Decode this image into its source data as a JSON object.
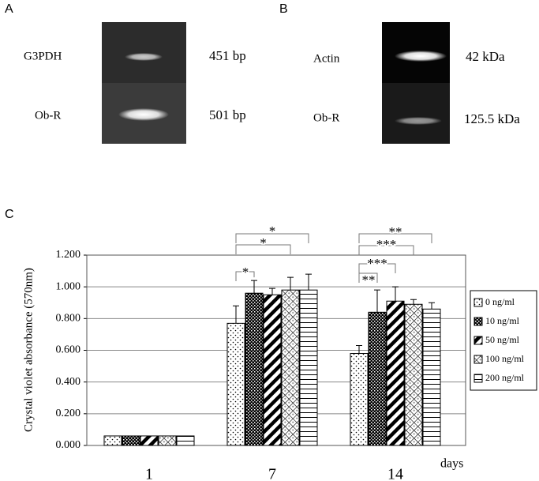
{
  "panel_a": {
    "label": "A",
    "rows": [
      {
        "name": "G3PDH",
        "size": "451 bp"
      },
      {
        "name": "Ob-R",
        "size": "501 bp"
      }
    ]
  },
  "panel_b": {
    "label": "B",
    "rows": [
      {
        "name": "Actin",
        "size": "42 kDa"
      },
      {
        "name": "Ob-R",
        "size": "125.5 kDa"
      }
    ]
  },
  "chart_data": {
    "type": "bar",
    "panel_label": "C",
    "ylabel": "Crystal violet absorbance (570nm)",
    "xlabel": "days",
    "categories": [
      "1",
      "7",
      "14"
    ],
    "ylim": [
      0,
      1.2
    ],
    "yticks": [
      {
        "value": 0,
        "label": "0.000"
      },
      {
        "value": 0.2,
        "label": "0.200"
      },
      {
        "value": 0.4,
        "label": "0.400"
      },
      {
        "value": 0.6,
        "label": "0.600"
      },
      {
        "value": 0.8,
        "label": "0.800"
      },
      {
        "value": 1.0,
        "label": "1.000"
      },
      {
        "value": 1.2,
        "label": "1.200"
      }
    ],
    "grid": true,
    "legend": "right",
    "series": [
      {
        "name": "0 ng/ml",
        "pattern": "dots",
        "values": [
          0.06,
          0.77,
          0.58
        ],
        "errors": [
          null,
          0.11,
          0.05
        ]
      },
      {
        "name": "10 ng/ml",
        "pattern": "checker",
        "values": [
          0.06,
          0.96,
          0.84
        ],
        "errors": [
          null,
          0.08,
          0.14
        ]
      },
      {
        "name": "50 ng/ml",
        "pattern": "diagonal",
        "values": [
          0.06,
          0.95,
          0.91
        ],
        "errors": [
          null,
          0.04,
          0.09
        ]
      },
      {
        "name": "100 ng/ml",
        "pattern": "crosshatch",
        "values": [
          0.06,
          0.98,
          0.89
        ],
        "errors": [
          null,
          0.08,
          0.03
        ]
      },
      {
        "name": "200 ng/ml",
        "pattern": "horizontal",
        "values": [
          0.06,
          0.98,
          0.86
        ],
        "errors": [
          null,
          0.1,
          0.04
        ]
      }
    ],
    "annotations": [
      "*",
      "*",
      "*",
      "**",
      "***",
      "***",
      "**"
    ]
  }
}
